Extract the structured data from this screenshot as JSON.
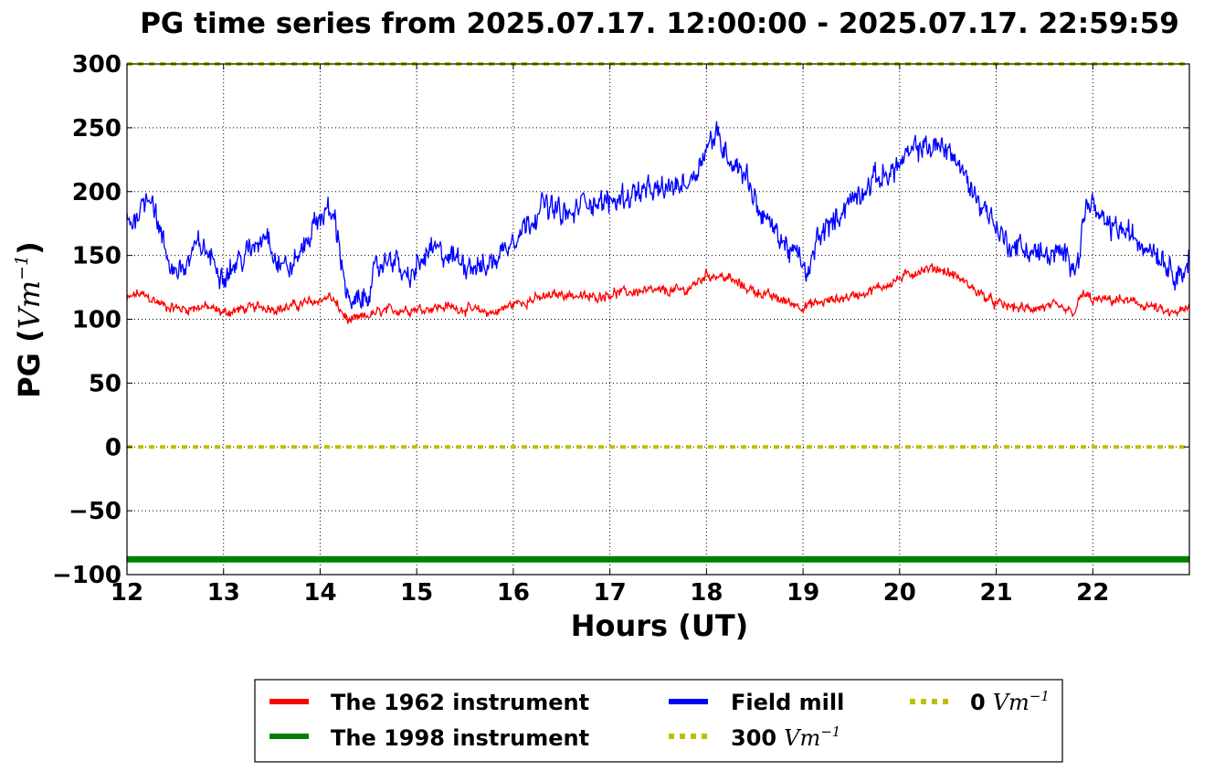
{
  "chart_data": {
    "type": "line",
    "title": "PG time series from 2025.07.17. 12:00:00 - 2025.07.17. 22:59:59",
    "xlabel": "Hours (UT)",
    "ylabel": "PG (",
    "ylabel_unit": "Vm",
    "ylabel_exp": "−1",
    "ylabel_close": ")",
    "xlim": [
      12,
      23
    ],
    "ylim": [
      -100,
      300
    ],
    "xticks": [
      12,
      13,
      14,
      15,
      16,
      17,
      18,
      19,
      20,
      21,
      22
    ],
    "xtick_labels": [
      "12",
      "13",
      "14",
      "15",
      "16",
      "17",
      "18",
      "19",
      "20",
      "21",
      "22"
    ],
    "yticks": [
      -100,
      -50,
      0,
      50,
      100,
      150,
      200,
      250,
      300
    ],
    "ytick_labels": [
      "−100",
      "−50",
      "0",
      "50",
      "100",
      "150",
      "200",
      "250",
      "300"
    ],
    "grid": true,
    "legend_position": "bottom, below plot",
    "series": [
      {
        "name": "The 1962 instrument",
        "color": "#ff0000",
        "style": "solid",
        "x": [
          12.0,
          12.1,
          12.2,
          12.4,
          12.6,
          12.8,
          13.0,
          13.2,
          13.4,
          13.6,
          13.8,
          14.0,
          14.1,
          14.3,
          14.5,
          14.7,
          15.0,
          15.3,
          15.6,
          15.8,
          16.0,
          16.3,
          16.5,
          16.8,
          17.0,
          17.3,
          17.6,
          17.8,
          18.0,
          18.2,
          18.4,
          18.7,
          19.0,
          19.3,
          19.6,
          19.8,
          20.0,
          20.2,
          20.4,
          20.6,
          20.8,
          21.0,
          21.3,
          21.6,
          21.8,
          21.9,
          22.0,
          22.3,
          22.6,
          22.8,
          23.0
        ],
        "values": [
          115,
          120,
          118,
          110,
          108,
          110,
          105,
          108,
          110,
          108,
          112,
          115,
          118,
          98,
          103,
          107,
          108,
          110,
          107,
          105,
          112,
          117,
          120,
          117,
          120,
          122,
          122,
          123,
          135,
          133,
          125,
          117,
          110,
          115,
          120,
          125,
          132,
          138,
          140,
          133,
          122,
          112,
          108,
          110,
          105,
          120,
          115,
          115,
          110,
          104,
          108
        ]
      },
      {
        "name": "The 1998 instrument",
        "color": "#008000",
        "style": "solid",
        "x": [
          12,
          23
        ],
        "values": [
          -88,
          -88
        ]
      },
      {
        "name": "Field mill",
        "color": "#0000ff",
        "style": "solid",
        "x": [
          12.0,
          12.05,
          12.15,
          12.25,
          12.35,
          12.45,
          12.6,
          12.75,
          12.85,
          13.0,
          13.15,
          13.3,
          13.45,
          13.55,
          13.7,
          13.85,
          13.95,
          14.05,
          14.15,
          14.3,
          14.45,
          14.6,
          14.75,
          14.9,
          15.0,
          15.15,
          15.3,
          15.5,
          15.7,
          15.85,
          16.0,
          16.15,
          16.3,
          16.45,
          16.6,
          16.75,
          16.9,
          17.1,
          17.3,
          17.5,
          17.7,
          17.85,
          18.0,
          18.1,
          18.25,
          18.4,
          18.55,
          18.7,
          18.85,
          19.0,
          19.05,
          19.15,
          19.3,
          19.45,
          19.6,
          19.75,
          19.9,
          20.05,
          20.2,
          20.35,
          20.5,
          20.65,
          20.8,
          20.95,
          21.1,
          21.3,
          21.5,
          21.7,
          21.85,
          21.9,
          21.95,
          22.1,
          22.3,
          22.5,
          22.65,
          22.8,
          22.95,
          23.0
        ],
        "values": [
          180,
          175,
          190,
          200,
          165,
          140,
          140,
          160,
          150,
          135,
          145,
          155,
          170,
          145,
          140,
          160,
          175,
          185,
          180,
          110,
          115,
          140,
          150,
          130,
          140,
          155,
          150,
          145,
          140,
          150,
          165,
          175,
          190,
          185,
          180,
          195,
          190,
          195,
          200,
          200,
          205,
          210,
          235,
          245,
          225,
          215,
          185,
          170,
          155,
          145,
          130,
          165,
          175,
          190,
          200,
          210,
          215,
          225,
          235,
          235,
          235,
          215,
          195,
          180,
          160,
          155,
          150,
          150,
          145,
          175,
          195,
          175,
          170,
          160,
          155,
          140,
          135,
          150
        ]
      },
      {
        "name": "300 Vm⁻¹",
        "label_num": "300",
        "color": "#bfbf00",
        "style": "dotted",
        "x": [
          12,
          23
        ],
        "values": [
          300,
          300
        ]
      },
      {
        "name": "0 Vm⁻¹",
        "label_num": "0",
        "color": "#bfbf00",
        "style": "dotted",
        "x": [
          12,
          23
        ],
        "values": [
          0,
          0
        ]
      }
    ],
    "legend": {
      "unit": "Vm",
      "unit_exp": "−1"
    }
  }
}
